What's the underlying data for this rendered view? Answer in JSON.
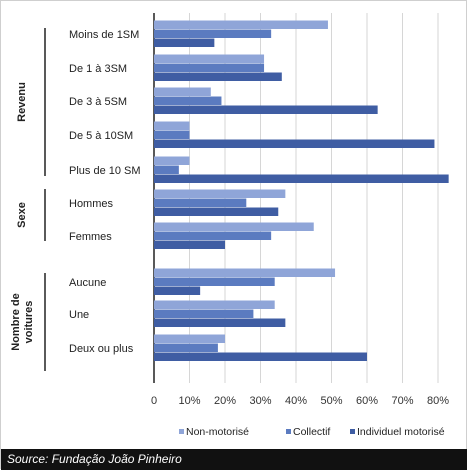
{
  "chart_data": {
    "type": "bar",
    "orientation": "horizontal",
    "groups": [
      {
        "label": "Revenu",
        "categories": [
          "Moins de 1SM",
          "De 1 à 3SM",
          "De 3 à 5SM",
          "De 5 à 10SM",
          "Plus de 10 SM"
        ]
      },
      {
        "label": "Sexe",
        "categories": [
          "Hommes",
          "Femmes"
        ]
      },
      {
        "label": "Nombre de voitures",
        "categories": [
          "Aucune",
          "Une",
          "Deux ou plus"
        ]
      }
    ],
    "categories": [
      "Moins de 1SM",
      "De 1 à 3SM",
      "De 3 à 5SM",
      "De 5 à 10SM",
      "Plus de 10 SM",
      "Hommes",
      "Femmes",
      "Aucune",
      "Une",
      "Deux ou plus"
    ],
    "series": [
      {
        "name": "Non-motorisé",
        "color": "#8FA5D8",
        "values": [
          49,
          31,
          16,
          10,
          10,
          37,
          45,
          51,
          34,
          20
        ]
      },
      {
        "name": "Collectif",
        "color": "#5B7BC0",
        "values": [
          33,
          31,
          19,
          10,
          7,
          26,
          33,
          34,
          28,
          18
        ]
      },
      {
        "name": "Individuel motorisé",
        "color": "#3F5DA3",
        "values": [
          17,
          36,
          63,
          79,
          83,
          35,
          20,
          13,
          37,
          60
        ]
      }
    ],
    "xlim": [
      0,
      80
    ],
    "xticks": [
      "0",
      "10%",
      "20%",
      "30%",
      "40%",
      "50%",
      "60%",
      "70%",
      "80%"
    ],
    "legend_position": "bottom",
    "grid": true
  },
  "source": "Source: Fundação João Pinheiro"
}
